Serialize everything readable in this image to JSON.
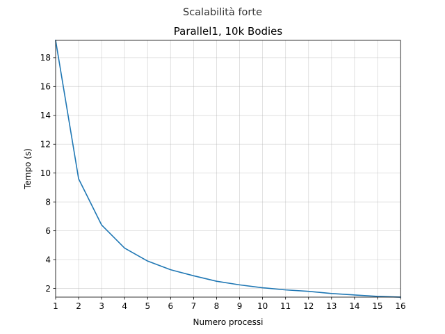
{
  "figure": {
    "suptitle": "Scalabilità forte"
  },
  "chart_data": {
    "type": "line",
    "title": "Parallel1, 10k Bodies",
    "xlabel": "Numero processi",
    "ylabel": "Tempo (s)",
    "xlim": [
      1,
      16
    ],
    "ylim": [
      1.4,
      19.2
    ],
    "xticks": [
      1,
      2,
      3,
      4,
      5,
      6,
      7,
      8,
      9,
      10,
      11,
      12,
      13,
      14,
      15,
      16
    ],
    "yticks": [
      2,
      4,
      6,
      8,
      10,
      12,
      14,
      16,
      18
    ],
    "grid": true,
    "legend": "none",
    "series": [
      {
        "color": "#1f77b4",
        "x": [
          1,
          2,
          3,
          4,
          5,
          6,
          7,
          8,
          9,
          10,
          11,
          12,
          13,
          14,
          15,
          16
        ],
        "y": [
          19.2,
          9.6,
          6.4,
          4.8,
          3.9,
          3.3,
          2.88,
          2.5,
          2.25,
          2.05,
          1.9,
          1.8,
          1.65,
          1.55,
          1.45,
          1.4
        ]
      }
    ]
  }
}
